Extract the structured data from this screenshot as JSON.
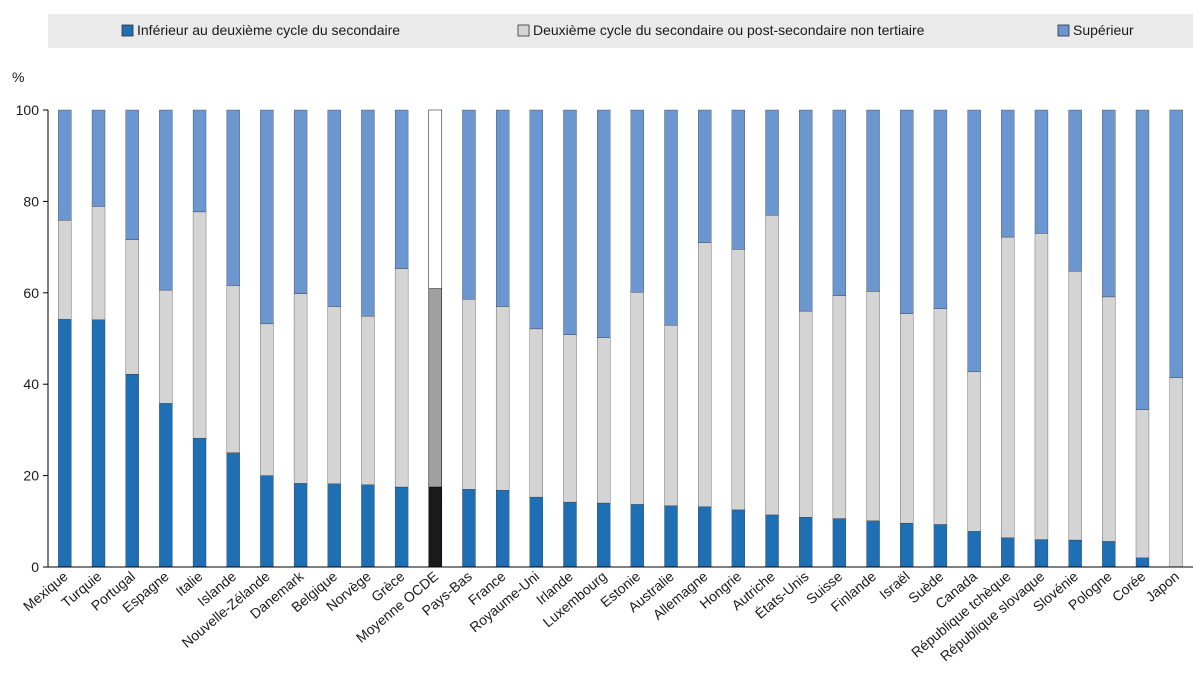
{
  "chart_data": {
    "type": "bar",
    "stacked": true,
    "ylabel": "%",
    "ylim": [
      0,
      100
    ],
    "yticks": [
      0,
      20,
      40,
      60,
      80,
      100
    ],
    "grid": false,
    "legend_position": "top",
    "highlight_category": "Moyenne OCDE",
    "categories": [
      "Mexique",
      "Turquie",
      "Portugal",
      "Espagne",
      "Italie",
      "Islande",
      "Nouvelle-Zélande",
      "Danemark",
      "Belgique",
      "Norvège",
      "Grèce",
      "Moyenne OCDE",
      "Pays-Bas",
      "France",
      "Royaume-Uni",
      "Irlande",
      "Luxembourg",
      "Estonie",
      "Australie",
      "Allemagne",
      "Hongrie",
      "Autriche",
      "États-Unis",
      "Suisse",
      "Finlande",
      "Israël",
      "Suède",
      "Canada",
      "République tchèque",
      "République slovaque",
      "Slovénie",
      "Pologne",
      "Corée",
      "Japon"
    ],
    "series": [
      {
        "name": "Inférieur au deuxième cycle du secondaire",
        "color": "#1f6fb5",
        "highlight_color": "#1a1a1a",
        "values": [
          54.2,
          54.1,
          42.2,
          35.8,
          28.2,
          25.0,
          20.0,
          18.3,
          18.2,
          18.0,
          17.5,
          17.5,
          17.0,
          16.8,
          15.3,
          14.2,
          14.0,
          13.7,
          13.4,
          13.2,
          12.5,
          11.4,
          10.9,
          10.6,
          10.1,
          9.6,
          9.3,
          7.8,
          6.4,
          6.0,
          5.9,
          5.6,
          2.0,
          0.0
        ]
      },
      {
        "name": "Deuxième cycle du secondaire ou post-secondaire non tertiaire",
        "color": "#d4d4d4",
        "highlight_color": "#a0a0a0",
        "values": [
          21.7,
          24.8,
          29.4,
          24.8,
          49.5,
          36.6,
          33.2,
          41.5,
          38.8,
          36.9,
          47.8,
          43.4,
          41.6,
          40.2,
          36.8,
          36.6,
          36.2,
          46.4,
          39.5,
          57.8,
          57.0,
          65.6,
          45.1,
          48.8,
          50.2,
          45.8,
          47.2,
          34.9,
          65.8,
          67.0,
          58.8,
          53.5,
          32.4,
          41.4
        ]
      },
      {
        "name": "Supérieur",
        "color": "#6b96d0",
        "highlight_color": "#ffffff",
        "values": [
          24.1,
          21.1,
          28.4,
          39.4,
          22.3,
          38.4,
          46.8,
          40.2,
          43.0,
          45.1,
          34.7,
          39.1,
          41.4,
          43.0,
          47.9,
          49.2,
          49.8,
          39.9,
          47.1,
          29.0,
          30.5,
          23.0,
          44.0,
          40.6,
          39.7,
          44.6,
          43.5,
          57.3,
          27.8,
          27.0,
          35.3,
          40.9,
          65.6,
          58.6
        ]
      }
    ]
  }
}
